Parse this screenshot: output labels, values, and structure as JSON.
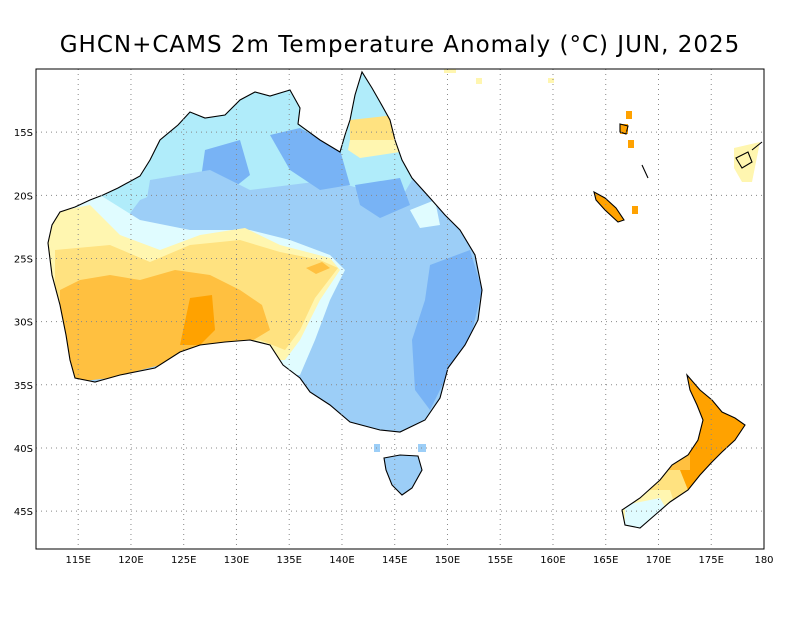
{
  "title": "GHCN+CAMS 2m Temperature Anomaly (°C) JUN, 2025",
  "map": {
    "region": "Australia and New Zealand",
    "lon_range": [
      111,
      180
    ],
    "lat_range": [
      -48,
      -10
    ],
    "x_ticks": [
      "115E",
      "120E",
      "125E",
      "130E",
      "135E",
      "140E",
      "145E",
      "150E",
      "155E",
      "160E",
      "165E",
      "170E",
      "175E",
      "180"
    ],
    "y_ticks": [
      "15S",
      "20S",
      "25S",
      "30S",
      "35S",
      "40S",
      "45S"
    ],
    "grid": "dotted",
    "palette": {
      "dark_orange": "#ffa200",
      "orange": "#ffc040",
      "yellow": "#ffe280",
      "light_yellow": "#fff6b0",
      "pale_cyan": "#e0fcff",
      "light_blue": "#b0ecfa",
      "mid_blue": "#9ccef7",
      "blue": "#78b3f5"
    }
  }
}
